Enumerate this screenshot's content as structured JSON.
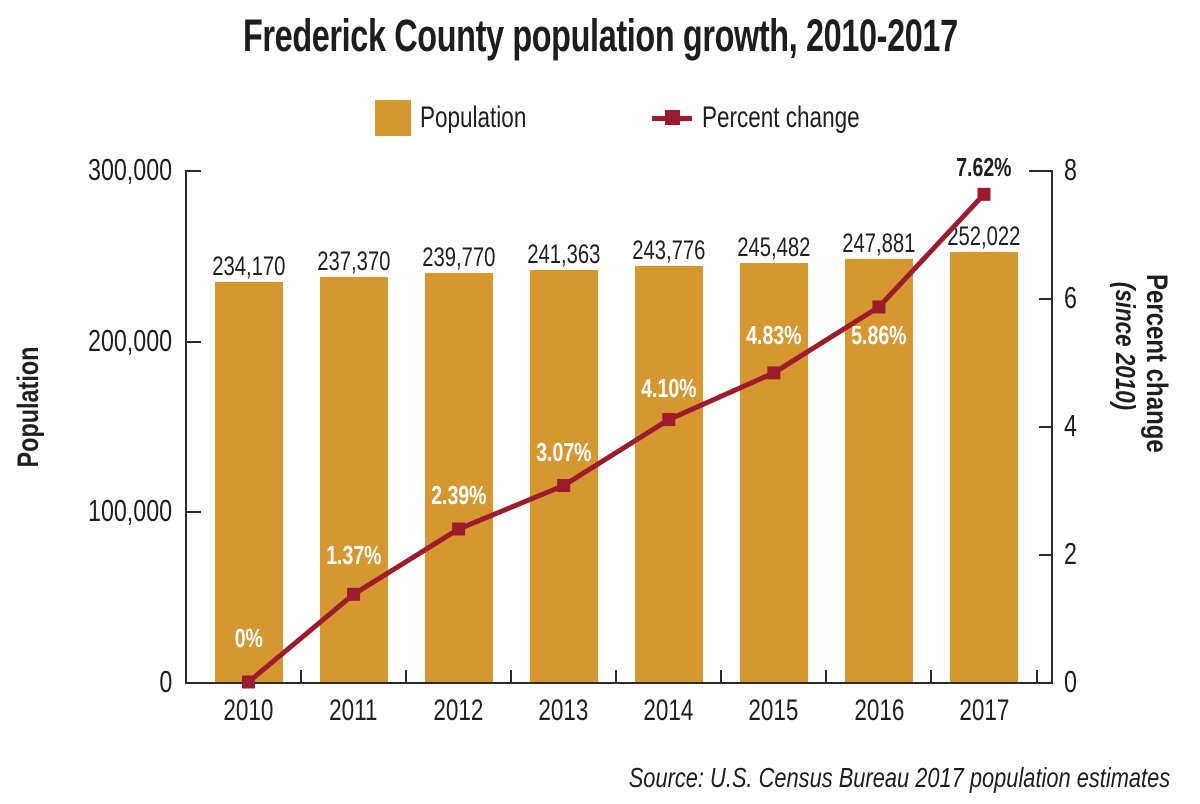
{
  "title": "Frederick County population growth, 2010-2017",
  "source": "Source: U.S. Census Bureau 2017 population estimates",
  "legend": {
    "population_label": "Population",
    "percent_change_label": "Percent change",
    "position": "top-center"
  },
  "colors": {
    "bar": "#d79730",
    "line": "#9c1b2c",
    "text": "#1e1e1e",
    "axis": "#2b2b2b",
    "label_on_bar": "#ffffff"
  },
  "chart_data": {
    "type": "bar+line",
    "categories": [
      "2010",
      "2011",
      "2012",
      "2013",
      "2014",
      "2015",
      "2016",
      "2017"
    ],
    "series": [
      {
        "name": "Population",
        "type": "bar",
        "axis": "left",
        "color": "#d79730",
        "values": [
          234170,
          237370,
          239770,
          241363,
          243776,
          245482,
          247881,
          252022
        ],
        "value_labels": [
          "234,170",
          "237,370",
          "239,770",
          "241,363",
          "243,776",
          "245,482",
          "247,881",
          "252,022"
        ]
      },
      {
        "name": "Percent change",
        "type": "line",
        "axis": "right",
        "color": "#9c1b2c",
        "marker": "square",
        "values": [
          0,
          1.37,
          2.39,
          3.07,
          4.1,
          4.83,
          5.86,
          7.62
        ],
        "value_labels": [
          "0%",
          "1.37%",
          "2.39%",
          "3.07%",
          "4.10%",
          "4.83%",
          "5.86%",
          "7.62%"
        ]
      }
    ],
    "left_axis": {
      "title": "Population",
      "range": [
        0,
        300000
      ],
      "tick_values": [
        0,
        100000,
        200000,
        300000
      ],
      "tick_labels": [
        "0",
        "100,000",
        "200,000",
        "300,000"
      ]
    },
    "right_axis": {
      "title": "Percent change",
      "subtitle": "(since 2010)",
      "range": [
        0,
        8
      ],
      "tick_values": [
        0,
        2,
        4,
        6,
        8
      ],
      "tick_labels": [
        "0",
        "2",
        "4",
        "6",
        "8"
      ]
    },
    "grid": "off",
    "legend_position": "top-center"
  }
}
